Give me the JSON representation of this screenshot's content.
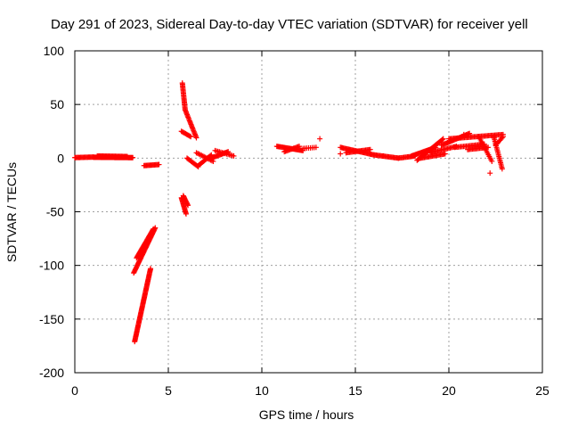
{
  "chart_data": {
    "type": "scatter",
    "title": "Day 291 of 2023, Sidereal Day-to-day VTEC variation (SDTVAR) for receiver yell",
    "xlabel": "GPS time / hours",
    "ylabel": "SDTVAR / TECUs",
    "xlim": [
      0,
      25
    ],
    "ylim": [
      -200,
      100
    ],
    "xticks": [
      0,
      5,
      10,
      15,
      20,
      25
    ],
    "yticks": [
      -200,
      -150,
      -100,
      -50,
      0,
      50,
      100
    ],
    "grid": true,
    "marker": "plus",
    "color": "#ff0000",
    "segments": [
      {
        "x0": 0.0,
        "y0": 0.5,
        "x1": 1.0,
        "y1": 1.0,
        "n": 20
      },
      {
        "x0": 1.0,
        "y0": 0.8,
        "x1": 3.1,
        "y1": 0.5,
        "n": 55
      },
      {
        "x0": 1.2,
        "y0": 2.0,
        "x1": 2.8,
        "y1": 1.5,
        "n": 30
      },
      {
        "x0": 3.7,
        "y0": -7,
        "x1": 4.5,
        "y1": -6,
        "n": 16
      },
      {
        "x0": 3.15,
        "y0": -107,
        "x1": 4.3,
        "y1": -65,
        "n": 45
      },
      {
        "x0": 3.3,
        "y0": -93,
        "x1": 4.2,
        "y1": -66,
        "n": 30
      },
      {
        "x0": 3.2,
        "y0": -171,
        "x1": 4.05,
        "y1": -103,
        "n": 75
      },
      {
        "x0": 5.75,
        "y0": 70,
        "x1": 5.9,
        "y1": 45,
        "n": 22
      },
      {
        "x0": 5.9,
        "y0": 45,
        "x1": 6.5,
        "y1": 19,
        "n": 24
      },
      {
        "x0": 5.7,
        "y0": 25,
        "x1": 6.2,
        "y1": 20,
        "n": 10
      },
      {
        "x0": 5.7,
        "y0": -37,
        "x1": 5.95,
        "y1": -52,
        "n": 16
      },
      {
        "x0": 5.8,
        "y0": -35,
        "x1": 6.05,
        "y1": -44,
        "n": 10
      },
      {
        "x0": 6.0,
        "y0": 0,
        "x1": 6.6,
        "y1": -8,
        "n": 12
      },
      {
        "x0": 6.6,
        "y0": -7,
        "x1": 7.3,
        "y1": 3,
        "n": 14
      },
      {
        "x0": 6.5,
        "y0": 5,
        "x1": 7.4,
        "y1": -3,
        "n": 14
      },
      {
        "x0": 7.3,
        "y0": 0,
        "x1": 8.2,
        "y1": 6,
        "n": 18
      },
      {
        "x0": 7.5,
        "y0": 7,
        "x1": 8.5,
        "y1": 2,
        "n": 14
      },
      {
        "x0": 10.8,
        "y0": 11,
        "x1": 12.2,
        "y1": 7,
        "n": 28
      },
      {
        "x0": 11.2,
        "y0": 6,
        "x1": 12.0,
        "y1": 11,
        "n": 14
      },
      {
        "x0": 12.2,
        "y0": 9,
        "x1": 12.9,
        "y1": 10,
        "n": 8
      },
      {
        "x0": 14.2,
        "y0": 10,
        "x1": 16.0,
        "y1": 3,
        "n": 34
      },
      {
        "x0": 14.5,
        "y0": 5,
        "x1": 15.8,
        "y1": 8,
        "n": 22
      },
      {
        "x0": 16.0,
        "y0": 3,
        "x1": 17.3,
        "y1": 0,
        "n": 24
      },
      {
        "x0": 17.3,
        "y0": 0,
        "x1": 18.2,
        "y1": 2,
        "n": 16
      },
      {
        "x0": 18.0,
        "y0": 2,
        "x1": 19.3,
        "y1": 10,
        "n": 26
      },
      {
        "x0": 18.5,
        "y0": 0,
        "x1": 19.8,
        "y1": 4,
        "n": 22
      },
      {
        "x0": 18.3,
        "y0": -2,
        "x1": 19.7,
        "y1": 18,
        "n": 28
      },
      {
        "x0": 19.0,
        "y0": 5,
        "x1": 20.4,
        "y1": 11,
        "n": 22
      },
      {
        "x0": 19.6,
        "y0": 12,
        "x1": 21.1,
        "y1": 23,
        "n": 28
      },
      {
        "x0": 20.0,
        "y0": 18,
        "x1": 22.9,
        "y1": 22,
        "n": 46
      },
      {
        "x0": 20.3,
        "y0": 10,
        "x1": 21.9,
        "y1": 13,
        "n": 24
      },
      {
        "x0": 21.0,
        "y0": 8,
        "x1": 22.1,
        "y1": 10,
        "n": 18
      },
      {
        "x0": 21.6,
        "y0": 20,
        "x1": 22.3,
        "y1": -3,
        "n": 16
      },
      {
        "x0": 22.4,
        "y0": 20,
        "x1": 22.85,
        "y1": -10,
        "n": 22
      },
      {
        "x0": 22.5,
        "y0": 12,
        "x1": 22.9,
        "y1": 20,
        "n": 8
      }
    ],
    "points": [
      {
        "x": 13.1,
        "y": 18
      },
      {
        "x": 14.2,
        "y": 4
      },
      {
        "x": 20.8,
        "y": 22
      },
      {
        "x": 22.2,
        "y": -14
      },
      {
        "x": 12.3,
        "y": 9
      },
      {
        "x": 16.5,
        "y": 2
      }
    ]
  }
}
